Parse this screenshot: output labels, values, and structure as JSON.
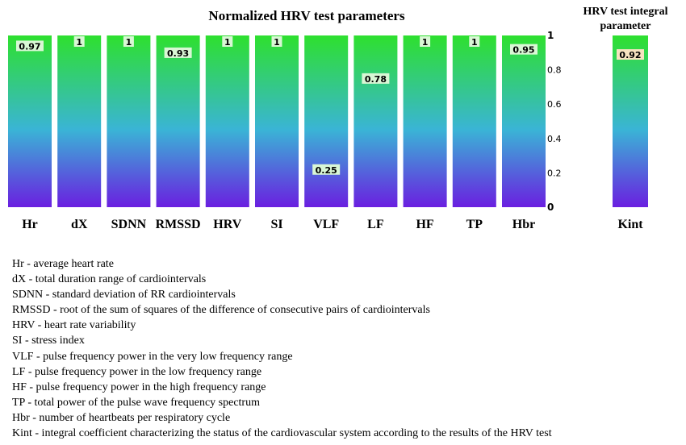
{
  "colors": {
    "gradient_top": "#2ee02e",
    "gradient_mid": "#3ab4d6",
    "gradient_bottom": "#6a1fe0",
    "label_box": "#d9f7d5",
    "kint_label_box": "#f7e3c0"
  },
  "chart_data": [
    {
      "type": "bar",
      "title": "Normalized HRV test parameters",
      "categories": [
        "Hr",
        "dX",
        "SDNN",
        "RMSSD",
        "HRV",
        "SI",
        "VLF",
        "LF",
        "HF",
        "TP",
        "Hbr"
      ],
      "values": [
        0.97,
        1,
        1,
        0.93,
        1,
        1,
        0.25,
        0.78,
        1,
        1,
        0.95
      ],
      "data_labels": [
        "0.97",
        "1",
        "1",
        "0.93",
        "1",
        "1",
        "0.25",
        "0.78",
        "1",
        "1",
        "0.95"
      ],
      "ylim": [
        0,
        1
      ],
      "yticks": [
        "0",
        "0.2",
        "0.4",
        "0.6",
        "0.8",
        "1"
      ],
      "grid": false,
      "axis_position": "right"
    },
    {
      "type": "bar",
      "title": "HRV test integral parameter",
      "categories": [
        "Kint"
      ],
      "values": [
        0.92
      ],
      "data_labels": [
        "0.92"
      ],
      "ylim": [
        0,
        1
      ]
    }
  ],
  "legend_lines": [
    "Hr - average heart rate",
    "dX - total duration range of cardiointervals",
    "SDNN - standard deviation of RR cardiointervals",
    "RMSSD - root of the sum of squares of the difference of consecutive pairs of cardiointervals",
    "HRV - heart rate variability",
    "SI - stress index",
    "VLF - pulse frequency power in the very low frequency range",
    "LF - pulse frequency power in the low frequency range",
    "HF - pulse frequency power in the high frequency range",
    "TP - total power of the pulse wave frequency spectrum",
    "Hbr - number of heartbeats per respiratory cycle",
    "Kint - integral coefficient characterizing the status of the cardiovascular system according to the results of the HRV test"
  ]
}
